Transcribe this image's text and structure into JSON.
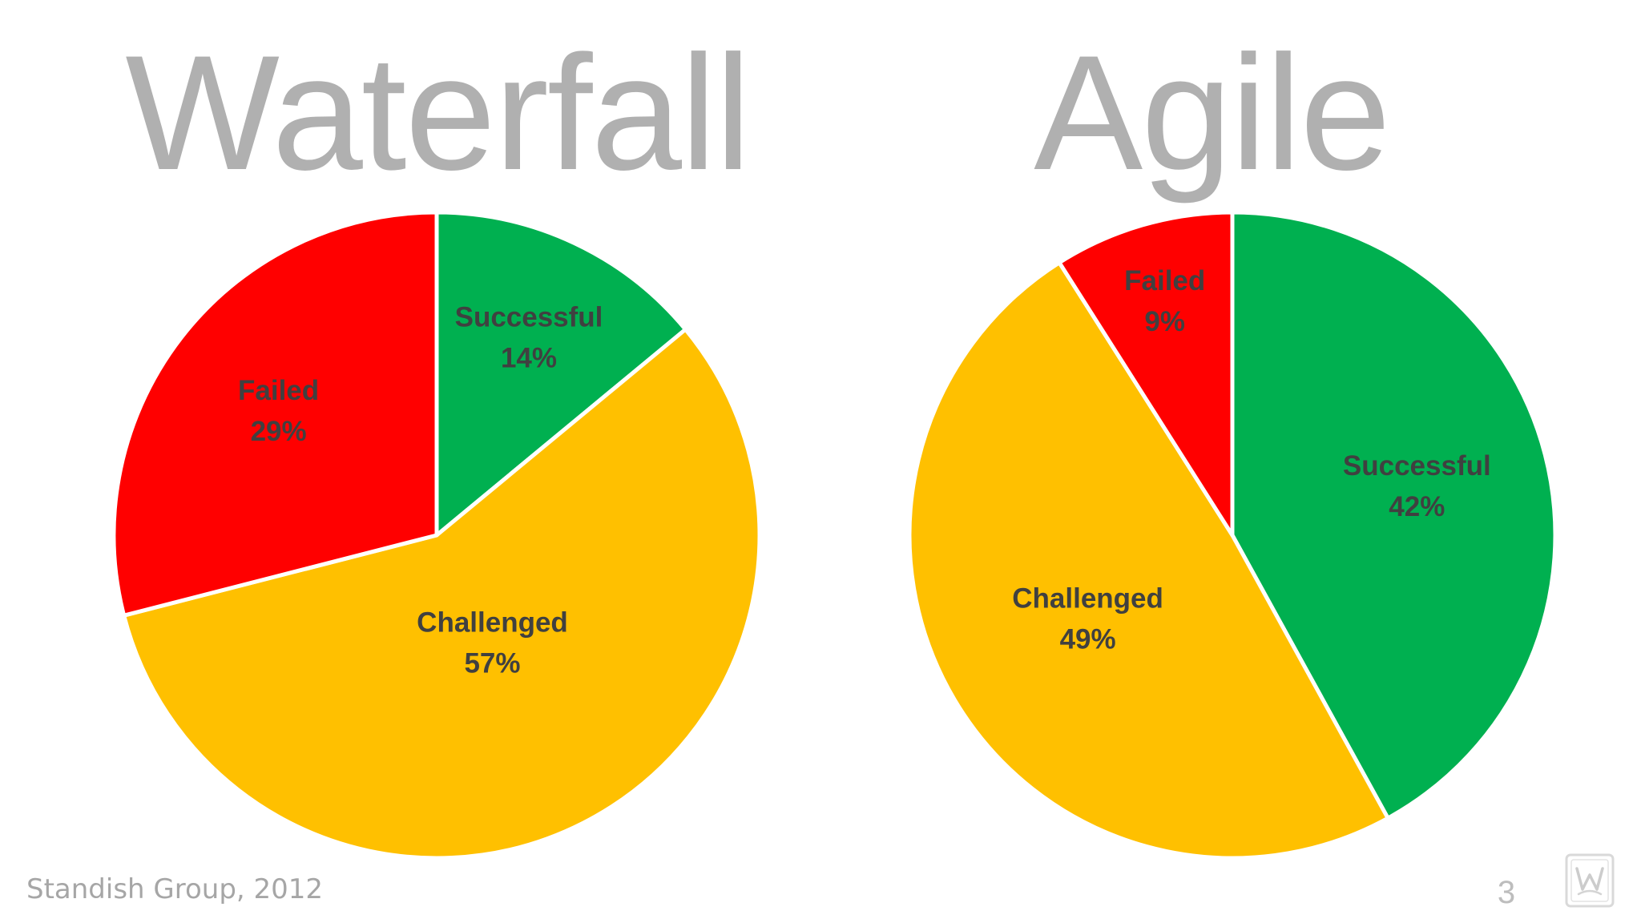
{
  "colors": {
    "successful": "#00b050",
    "challenged": "#ffc000",
    "failed": "#ff0000"
  },
  "chart_data": [
    {
      "type": "pie",
      "title": "Waterfall",
      "slices": [
        {
          "label": "Successful",
          "value": 14,
          "display": "14%",
          "color": "#00b050"
        },
        {
          "label": "Challenged",
          "value": 57,
          "display": "57%",
          "color": "#ffc000"
        },
        {
          "label": "Failed",
          "value": 29,
          "display": "29%",
          "color": "#ff0000"
        }
      ]
    },
    {
      "type": "pie",
      "title": "Agile",
      "slices": [
        {
          "label": "Successful",
          "value": 42,
          "display": "42%",
          "color": "#00b050"
        },
        {
          "label": "Challenged",
          "value": 49,
          "display": "49%",
          "color": "#ffc000"
        },
        {
          "label": "Failed",
          "value": 9,
          "display": "9%",
          "color": "#ff0000"
        }
      ]
    }
  ],
  "footer": {
    "source": "Standish Group, 2012",
    "page_number": "3"
  }
}
